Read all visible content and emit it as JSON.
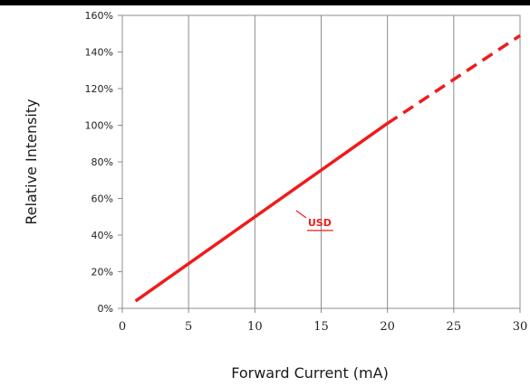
{
  "chart_data": {
    "type": "line",
    "title": "",
    "xlabel": "Forward Current (mA)",
    "ylabel": "Relative Intensity",
    "xlim": [
      0,
      30
    ],
    "ylim": [
      0,
      160
    ],
    "x_ticks": [
      0,
      5,
      10,
      15,
      20,
      25,
      30
    ],
    "x_tick_labels": [
      "0",
      "5",
      "10",
      "15",
      "20",
      "25",
      "30"
    ],
    "y_ticks": [
      0,
      20,
      40,
      60,
      80,
      100,
      120,
      140,
      160
    ],
    "y_tick_labels": [
      "0%",
      "20%",
      "40%",
      "60%",
      "80%",
      "100%",
      "120%",
      "140%",
      "160%"
    ],
    "grid": {
      "vertical": true,
      "horizontal": false
    },
    "series": [
      {
        "name": "USD",
        "color": "#ee1c1c",
        "segments": [
          {
            "style": "solid",
            "x": [
              1,
              20
            ],
            "y": [
              4,
              101
            ]
          },
          {
            "style": "dashed",
            "x": [
              20,
              30
            ],
            "y": [
              101,
              149
            ]
          }
        ]
      }
    ],
    "annotations": [
      {
        "text": "USD",
        "x": 14,
        "y": 45,
        "color": "#ee1c1c",
        "underline": true
      }
    ]
  }
}
